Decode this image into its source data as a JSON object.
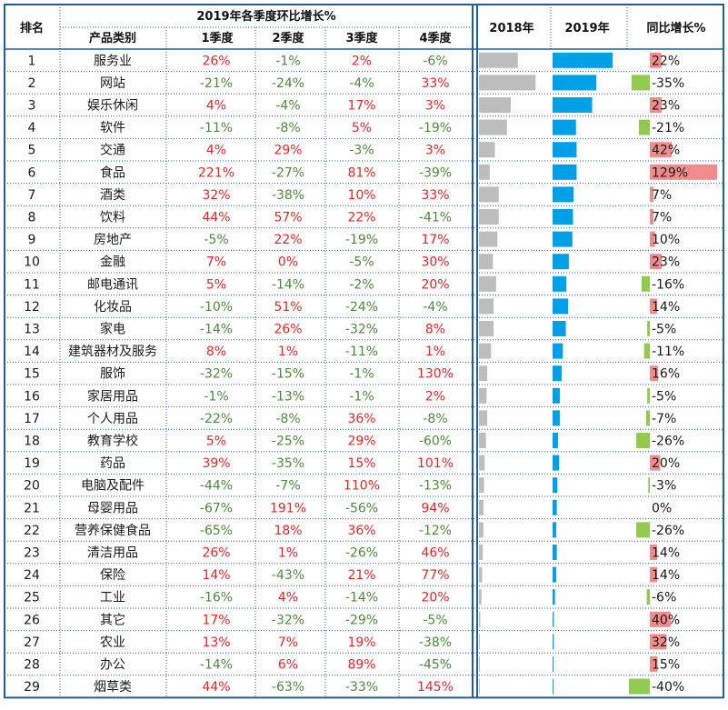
{
  "headers": {
    "rank": "排名",
    "quarter_group": "2019年各季度环比增长%",
    "category": "产品类别",
    "q1": "1季度",
    "q2": "2季度",
    "q3": "3季度",
    "q4": "4季度",
    "y2018": "2018年",
    "y2019": "2019年",
    "yoy": "同比增长%"
  },
  "colors": {
    "bar2018": "#bdbdbd",
    "bar2019": "#00a0e9",
    "yoy_positive": "#f28b8b",
    "yoy_negative": "#92c94f",
    "positive_text": "#e8262a",
    "negative_text": "#4e8a3e",
    "border": "#1f5fa0"
  },
  "chart_data": {
    "type": "table",
    "series_2018_relative": [
      0.61,
      0.89,
      0.5,
      0.44,
      0.25,
      0.17,
      0.31,
      0.31,
      0.29,
      0.22,
      0.27,
      0.23,
      0.23,
      0.19,
      0.13,
      0.12,
      0.13,
      0.11,
      0.09,
      0.08,
      0.07,
      0.07,
      0.06,
      0.05,
      0.04,
      0.02,
      0.01,
      0.01,
      0.01
    ],
    "series_2019_relative": [
      1.0,
      0.73,
      0.66,
      0.39,
      0.4,
      0.4,
      0.35,
      0.34,
      0.33,
      0.27,
      0.23,
      0.26,
      0.22,
      0.17,
      0.15,
      0.12,
      0.12,
      0.09,
      0.11,
      0.08,
      0.07,
      0.06,
      0.07,
      0.06,
      0.04,
      0.02,
      0.02,
      0.01,
      0.01
    ],
    "rows": [
      {
        "rank": "1",
        "category": "服务业",
        "q1": "26%",
        "q2": "-1%",
        "q3": "2%",
        "q4": "-6%",
        "yoy": "22%",
        "yoy_value": 22
      },
      {
        "rank": "2",
        "category": "网站",
        "q1": "-21%",
        "q2": "-24%",
        "q3": "-4%",
        "q4": "33%",
        "yoy": "-35%",
        "yoy_value": -35
      },
      {
        "rank": "3",
        "category": "娱乐休闲",
        "q1": "4%",
        "q2": "-4%",
        "q3": "17%",
        "q4": "3%",
        "yoy": "23%",
        "yoy_value": 23
      },
      {
        "rank": "4",
        "category": "软件",
        "q1": "-11%",
        "q2": "-8%",
        "q3": "5%",
        "q4": "-19%",
        "yoy": "-21%",
        "yoy_value": -21
      },
      {
        "rank": "5",
        "category": "交通",
        "q1": "4%",
        "q2": "29%",
        "q3": "-3%",
        "q4": "3%",
        "yoy": "42%",
        "yoy_value": 42
      },
      {
        "rank": "6",
        "category": "食品",
        "q1": "221%",
        "q2": "-27%",
        "q3": "81%",
        "q4": "-39%",
        "yoy": "129%",
        "yoy_value": 129
      },
      {
        "rank": "7",
        "category": "酒类",
        "q1": "32%",
        "q2": "-38%",
        "q3": "10%",
        "q4": "33%",
        "yoy": "7%",
        "yoy_value": 7
      },
      {
        "rank": "8",
        "category": "饮料",
        "q1": "44%",
        "q2": "57%",
        "q3": "22%",
        "q4": "-41%",
        "yoy": "7%",
        "yoy_value": 7
      },
      {
        "rank": "9",
        "category": "房地产",
        "q1": "-5%",
        "q2": "22%",
        "q3": "-19%",
        "q4": "17%",
        "yoy": "10%",
        "yoy_value": 10
      },
      {
        "rank": "10",
        "category": "金融",
        "q1": "7%",
        "q2": "0%",
        "q3": "-5%",
        "q4": "30%",
        "yoy": "23%",
        "yoy_value": 23
      },
      {
        "rank": "11",
        "category": "邮电通讯",
        "q1": "5%",
        "q2": "-14%",
        "q3": "-2%",
        "q4": "20%",
        "yoy": "-16%",
        "yoy_value": -16
      },
      {
        "rank": "12",
        "category": "化妆品",
        "q1": "-10%",
        "q2": "51%",
        "q3": "-24%",
        "q4": "-4%",
        "yoy": "14%",
        "yoy_value": 14
      },
      {
        "rank": "13",
        "category": "家电",
        "q1": "-14%",
        "q2": "26%",
        "q3": "-32%",
        "q4": "8%",
        "yoy": "-5%",
        "yoy_value": -5
      },
      {
        "rank": "14",
        "category": "建筑器材及服务",
        "q1": "8%",
        "q2": "1%",
        "q3": "-11%",
        "q4": "1%",
        "yoy": "-11%",
        "yoy_value": -11
      },
      {
        "rank": "15",
        "category": "服饰",
        "q1": "-32%",
        "q2": "-15%",
        "q3": "-1%",
        "q4": "130%",
        "yoy": "16%",
        "yoy_value": 16
      },
      {
        "rank": "16",
        "category": "家居用品",
        "q1": "-1%",
        "q2": "-13%",
        "q3": "-1%",
        "q4": "2%",
        "yoy": "-5%",
        "yoy_value": -5
      },
      {
        "rank": "17",
        "category": "个人用品",
        "q1": "-22%",
        "q2": "-8%",
        "q3": "36%",
        "q4": "-8%",
        "yoy": "-7%",
        "yoy_value": -7
      },
      {
        "rank": "18",
        "category": "教育学校",
        "q1": "5%",
        "q2": "-25%",
        "q3": "29%",
        "q4": "-60%",
        "yoy": "-26%",
        "yoy_value": -26
      },
      {
        "rank": "19",
        "category": "药品",
        "q1": "39%",
        "q2": "-35%",
        "q3": "15%",
        "q4": "101%",
        "yoy": "20%",
        "yoy_value": 20
      },
      {
        "rank": "20",
        "category": "电脑及配件",
        "q1": "-44%",
        "q2": "-7%",
        "q3": "110%",
        "q4": "-13%",
        "yoy": "-3%",
        "yoy_value": -3
      },
      {
        "rank": "21",
        "category": "母婴用品",
        "q1": "-67%",
        "q2": "191%",
        "q3": "-56%",
        "q4": "94%",
        "yoy": "0%",
        "yoy_value": 0
      },
      {
        "rank": "22",
        "category": "营养保健食品",
        "q1": "-65%",
        "q2": "18%",
        "q3": "36%",
        "q4": "-12%",
        "yoy": "-26%",
        "yoy_value": -26
      },
      {
        "rank": "23",
        "category": "清洁用品",
        "q1": "26%",
        "q2": "1%",
        "q3": "-26%",
        "q4": "46%",
        "yoy": "14%",
        "yoy_value": 14
      },
      {
        "rank": "24",
        "category": "保险",
        "q1": "14%",
        "q2": "-43%",
        "q3": "21%",
        "q4": "77%",
        "yoy": "14%",
        "yoy_value": 14
      },
      {
        "rank": "25",
        "category": "工业",
        "q1": "-16%",
        "q2": "4%",
        "q3": "-14%",
        "q4": "20%",
        "yoy": "-6%",
        "yoy_value": -6
      },
      {
        "rank": "26",
        "category": "其它",
        "q1": "17%",
        "q2": "-32%",
        "q3": "-29%",
        "q4": "-5%",
        "yoy": "40%",
        "yoy_value": 40
      },
      {
        "rank": "27",
        "category": "农业",
        "q1": "13%",
        "q2": "7%",
        "q3": "19%",
        "q4": "-38%",
        "yoy": "32%",
        "yoy_value": 32
      },
      {
        "rank": "28",
        "category": "办公",
        "q1": "-14%",
        "q2": "6%",
        "q3": "89%",
        "q4": "-45%",
        "yoy": "15%",
        "yoy_value": 15
      },
      {
        "rank": "29",
        "category": "烟草类",
        "q1": "44%",
        "q2": "-63%",
        "q3": "-33%",
        "q4": "145%",
        "yoy": "-40%",
        "yoy_value": -40
      }
    ]
  }
}
